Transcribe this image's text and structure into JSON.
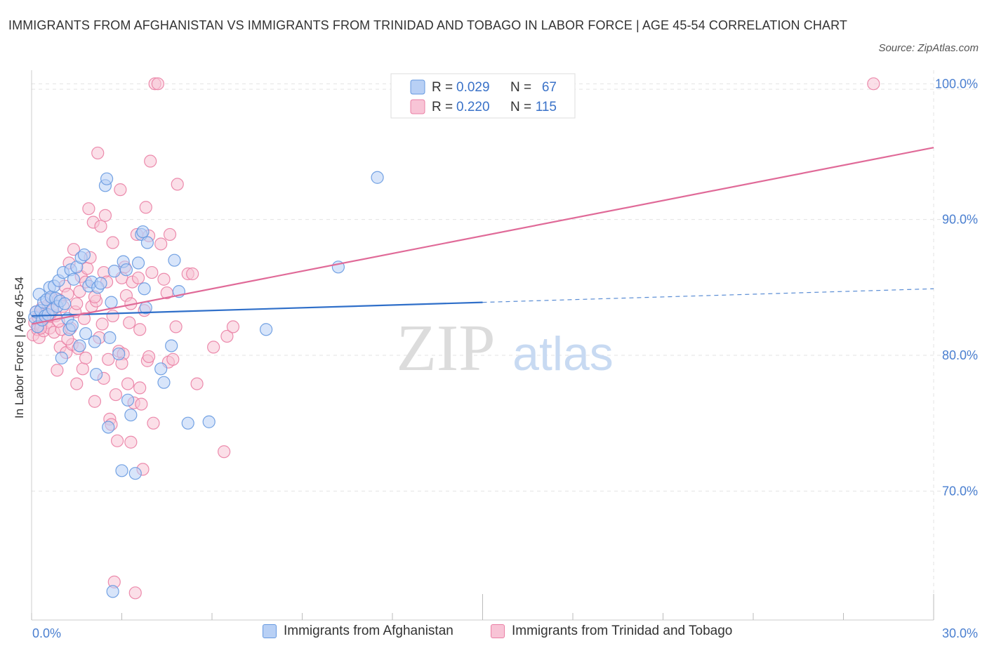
{
  "header": {
    "title": "IMMIGRANTS FROM AFGHANISTAN VS IMMIGRANTS FROM TRINIDAD AND TOBAGO IN LABOR FORCE | AGE 45-54 CORRELATION CHART",
    "source": "Source: ZipAtlas.com"
  },
  "watermark": {
    "zip": "ZIP",
    "atlas": "atlas"
  },
  "colors": {
    "blue": "#6699e0",
    "blue_fill": "#b8d0f5",
    "blue_line": "#2f6fc9",
    "pink": "#ea7fa4",
    "pink_fill": "#f8c4d6",
    "pink_line": "#e06a98",
    "axis_text": "#4a7fd0",
    "grid": "#e3e3e3"
  },
  "legend": {
    "rows": [
      {
        "r_label": "R =",
        "r_value": "0.029",
        "n_label": "N =",
        "n_value": "67"
      },
      {
        "r_label": "R =",
        "r_value": "0.220",
        "n_label": "N =",
        "n_value": "115"
      }
    ]
  },
  "chart_data": {
    "type": "scatter",
    "title": "IMMIGRANTS FROM AFGHANISTAN VS IMMIGRANTS FROM TRINIDAD AND TOBAGO IN LABOR FORCE | AGE 45-54 CORRELATION CHART",
    "xlabel": "",
    "ylabel": "In Labor Force | Age 45-54",
    "xlim": [
      0,
      30
    ],
    "ylim": [
      60.5,
      101
    ],
    "x_tick_labels": [
      {
        "value": 0,
        "label": "0.0%"
      },
      {
        "value": 30,
        "label": "30.0%"
      }
    ],
    "y_tick_labels": [
      {
        "value": 70,
        "label": "70.0%"
      },
      {
        "value": 80,
        "label": "80.0%"
      },
      {
        "value": 90,
        "label": "90.0%"
      },
      {
        "value": 100,
        "label": "100.0%"
      }
    ],
    "grid": true,
    "legend_position": "top-center",
    "series": [
      {
        "name": "Immigrants from Afghanistan",
        "color": "#6699e0",
        "R": 0.029,
        "N": 67,
        "trend": {
          "x": [
            0,
            15,
            30
          ],
          "y": [
            82.9,
            83.9,
            84.9
          ],
          "solid_until": 15
        },
        "points": [
          [
            0.1,
            82.8
          ],
          [
            0.15,
            83.2
          ],
          [
            0.2,
            82.1
          ],
          [
            0.25,
            84.5
          ],
          [
            0.3,
            83.3
          ],
          [
            0.35,
            82.6
          ],
          [
            0.4,
            83.9
          ],
          [
            0.45,
            82.9
          ],
          [
            0.5,
            84.1
          ],
          [
            0.55,
            83.0
          ],
          [
            0.6,
            85.0
          ],
          [
            0.65,
            84.3
          ],
          [
            0.7,
            83.4
          ],
          [
            0.75,
            85.1
          ],
          [
            0.8,
            84.2
          ],
          [
            0.85,
            83.6
          ],
          [
            0.9,
            85.5
          ],
          [
            0.95,
            84.0
          ],
          [
            1.0,
            79.8
          ],
          [
            1.05,
            86.1
          ],
          [
            1.1,
            83.8
          ],
          [
            1.2,
            82.7
          ],
          [
            1.25,
            81.9
          ],
          [
            1.3,
            86.3
          ],
          [
            1.35,
            82.2
          ],
          [
            1.4,
            85.6
          ],
          [
            1.5,
            86.5
          ],
          [
            1.6,
            80.7
          ],
          [
            1.65,
            87.2
          ],
          [
            1.75,
            87.4
          ],
          [
            1.8,
            81.6
          ],
          [
            1.9,
            85.1
          ],
          [
            2.0,
            85.4
          ],
          [
            2.1,
            81.0
          ],
          [
            2.15,
            78.6
          ],
          [
            2.2,
            85.0
          ],
          [
            2.3,
            85.3
          ],
          [
            2.45,
            92.5
          ],
          [
            2.5,
            93.0
          ],
          [
            2.55,
            74.7
          ],
          [
            2.6,
            81.3
          ],
          [
            2.65,
            83.9
          ],
          [
            2.7,
            62.6
          ],
          [
            2.75,
            86.2
          ],
          [
            2.9,
            80.1
          ],
          [
            3.0,
            71.5
          ],
          [
            3.05,
            86.9
          ],
          [
            3.15,
            86.3
          ],
          [
            3.2,
            76.7
          ],
          [
            3.3,
            75.6
          ],
          [
            3.45,
            71.3
          ],
          [
            3.55,
            86.8
          ],
          [
            3.65,
            88.9
          ],
          [
            3.7,
            89.1
          ],
          [
            3.75,
            84.9
          ],
          [
            3.8,
            83.5
          ],
          [
            3.85,
            88.3
          ],
          [
            4.3,
            79.0
          ],
          [
            4.4,
            78.0
          ],
          [
            4.65,
            80.7
          ],
          [
            4.75,
            87.0
          ],
          [
            4.9,
            84.7
          ],
          [
            5.2,
            75.0
          ],
          [
            5.9,
            75.1
          ],
          [
            7.8,
            81.9
          ],
          [
            10.2,
            86.5
          ],
          [
            11.5,
            93.1
          ]
        ]
      },
      {
        "name": "Immigrants from Trinidad and Tobago",
        "color": "#ea7fa4",
        "R": 0.22,
        "N": 115,
        "trend": {
          "x": [
            0,
            30
          ],
          "y": [
            82.3,
            95.3
          ]
        },
        "points": [
          [
            0.05,
            81.5
          ],
          [
            0.1,
            82.4
          ],
          [
            0.15,
            83.2
          ],
          [
            0.2,
            81.9
          ],
          [
            0.22,
            82.8
          ],
          [
            0.25,
            81.3
          ],
          [
            0.3,
            83.0
          ],
          [
            0.32,
            82.2
          ],
          [
            0.35,
            83.5
          ],
          [
            0.38,
            82.6
          ],
          [
            0.4,
            81.8
          ],
          [
            0.45,
            83.1
          ],
          [
            0.5,
            82.4
          ],
          [
            0.55,
            83.7
          ],
          [
            0.6,
            82.0
          ],
          [
            0.65,
            84.2
          ],
          [
            0.7,
            83.3
          ],
          [
            0.75,
            81.7
          ],
          [
            0.8,
            82.9
          ],
          [
            0.85,
            78.9
          ],
          [
            0.9,
            84.1
          ],
          [
            0.95,
            80.6
          ],
          [
            1.0,
            81.9
          ],
          [
            1.05,
            83.6
          ],
          [
            1.1,
            85.1
          ],
          [
            1.15,
            80.2
          ],
          [
            1.2,
            84.5
          ],
          [
            1.25,
            86.8
          ],
          [
            1.3,
            82.0
          ],
          [
            1.35,
            80.8
          ],
          [
            1.4,
            87.8
          ],
          [
            1.45,
            83.2
          ],
          [
            1.5,
            77.9
          ],
          [
            1.55,
            80.5
          ],
          [
            1.6,
            84.7
          ],
          [
            1.65,
            85.8
          ],
          [
            1.7,
            79.0
          ],
          [
            1.75,
            82.7
          ],
          [
            1.8,
            79.8
          ],
          [
            1.85,
            86.4
          ],
          [
            1.9,
            90.8
          ],
          [
            1.95,
            87.2
          ],
          [
            2.0,
            83.6
          ],
          [
            2.05,
            89.8
          ],
          [
            2.1,
            76.6
          ],
          [
            2.15,
            84.0
          ],
          [
            2.2,
            94.9
          ],
          [
            2.25,
            81.3
          ],
          [
            2.3,
            89.5
          ],
          [
            2.35,
            82.3
          ],
          [
            2.4,
            86.1
          ],
          [
            2.45,
            90.3
          ],
          [
            2.5,
            85.4
          ],
          [
            2.55,
            79.7
          ],
          [
            2.6,
            75.3
          ],
          [
            2.65,
            74.9
          ],
          [
            2.7,
            88.3
          ],
          [
            2.75,
            63.3
          ],
          [
            2.8,
            77.1
          ],
          [
            2.85,
            73.7
          ],
          [
            2.9,
            80.3
          ],
          [
            2.95,
            92.2
          ],
          [
            3.0,
            85.7
          ],
          [
            3.05,
            80.1
          ],
          [
            3.1,
            86.5
          ],
          [
            3.15,
            84.4
          ],
          [
            3.2,
            77.9
          ],
          [
            3.25,
            82.4
          ],
          [
            3.3,
            73.6
          ],
          [
            3.35,
            85.4
          ],
          [
            3.4,
            76.5
          ],
          [
            3.45,
            62.5
          ],
          [
            3.5,
            88.9
          ],
          [
            3.55,
            85.7
          ],
          [
            3.6,
            77.6
          ],
          [
            3.65,
            76.4
          ],
          [
            3.7,
            71.6
          ],
          [
            3.75,
            83.3
          ],
          [
            3.8,
            90.9
          ],
          [
            3.85,
            79.6
          ],
          [
            3.9,
            88.8
          ],
          [
            3.95,
            94.3
          ],
          [
            4.0,
            86.1
          ],
          [
            4.05,
            75.0
          ],
          [
            4.1,
            100.0
          ],
          [
            4.2,
            100.0
          ],
          [
            4.3,
            88.2
          ],
          [
            4.4,
            85.6
          ],
          [
            4.5,
            84.6
          ],
          [
            4.55,
            79.5
          ],
          [
            4.6,
            88.9
          ],
          [
            4.7,
            79.7
          ],
          [
            4.8,
            82.1
          ],
          [
            4.85,
            92.6
          ],
          [
            5.2,
            86.0
          ],
          [
            5.35,
            86.0
          ],
          [
            5.5,
            77.9
          ],
          [
            6.05,
            80.6
          ],
          [
            6.4,
            72.9
          ],
          [
            6.5,
            81.4
          ],
          [
            6.7,
            82.1
          ],
          [
            28.0,
            100.0
          ],
          [
            0.3,
            82.0
          ],
          [
            0.6,
            82.9
          ],
          [
            0.9,
            82.5
          ],
          [
            1.2,
            81.2
          ],
          [
            1.5,
            83.8
          ],
          [
            1.8,
            85.4
          ],
          [
            2.1,
            84.3
          ],
          [
            2.4,
            78.3
          ],
          [
            2.7,
            82.9
          ],
          [
            3.0,
            79.4
          ],
          [
            3.3,
            83.8
          ],
          [
            3.6,
            81.9
          ],
          [
            3.9,
            79.9
          ]
        ]
      }
    ]
  },
  "bottom_legend": {
    "items": [
      {
        "label": "Immigrants from Afghanistan"
      },
      {
        "label": "Immigrants from Trinidad and Tobago"
      }
    ]
  }
}
